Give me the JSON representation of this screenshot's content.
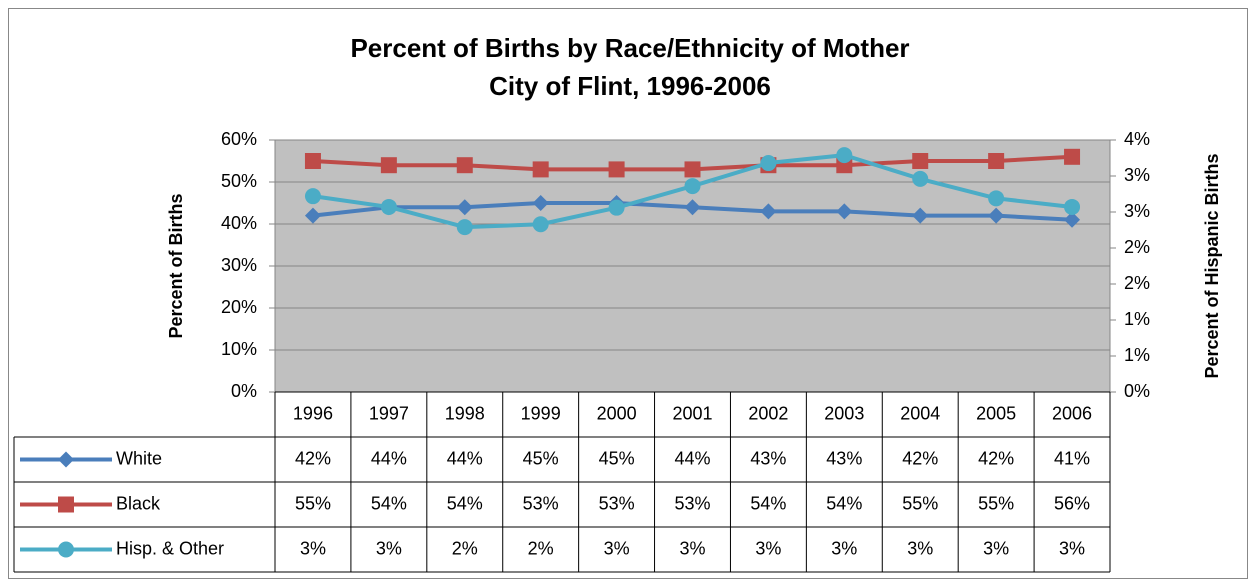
{
  "chart_data": {
    "type": "line",
    "title": "Percent of Births by Race/Ethnicity of Mother",
    "subtitle": "City of Flint, 1996-2006",
    "y_label": "Percent of Births",
    "y2_label": "Percent of Hispanic Births",
    "categories": [
      "1996",
      "1997",
      "1998",
      "1999",
      "2000",
      "2001",
      "2002",
      "2003",
      "2004",
      "2005",
      "2006"
    ],
    "ylim": [
      0,
      60
    ],
    "yticks": [
      {
        "value": 0,
        "label": "0%"
      },
      {
        "value": 10,
        "label": "10%"
      },
      {
        "value": 20,
        "label": "20%"
      },
      {
        "value": 30,
        "label": "30%"
      },
      {
        "value": 40,
        "label": "40%"
      },
      {
        "value": 50,
        "label": "50%"
      },
      {
        "value": 60,
        "label": "60%"
      }
    ],
    "y2lim": [
      0,
      3.5
    ],
    "y2ticks": [
      {
        "value": 0,
        "label": "0%"
      },
      {
        "value": 0.5,
        "label": "1%"
      },
      {
        "value": 1,
        "label": "1%"
      },
      {
        "value": 1.5,
        "label": "2%"
      },
      {
        "value": 2,
        "label": "2%"
      },
      {
        "value": 2.5,
        "label": "3%"
      },
      {
        "value": 3,
        "label": "3%"
      },
      {
        "value": 3.5,
        "label": "4%"
      }
    ],
    "grid": true,
    "series": [
      {
        "name": "White",
        "color": "#4a7ebb",
        "marker": "diamond",
        "values": [
          42,
          44,
          44,
          45,
          45,
          44,
          43,
          43,
          42,
          42,
          41
        ],
        "value_labels": [
          "42%",
          "44%",
          "44%",
          "45%",
          "45%",
          "44%",
          "43%",
          "43%",
          "42%",
          "42%",
          "41%"
        ]
      },
      {
        "name": "Black",
        "color": "#be4b48",
        "marker": "square",
        "values": [
          55,
          54,
          54,
          53,
          53,
          53,
          54,
          54,
          55,
          55,
          56
        ],
        "value_labels": [
          "55%",
          "54%",
          "54%",
          "53%",
          "53%",
          "53%",
          "54%",
          "54%",
          "55%",
          "55%",
          "56%"
        ]
      },
      {
        "name": "Hisp. & Other",
        "color": "#4bacc6",
        "marker": "circle",
        "axis": "y2",
        "values": [
          2.72,
          2.57,
          2.29,
          2.33,
          2.56,
          2.86,
          3.18,
          3.29,
          2.96,
          2.69,
          2.57
        ],
        "value_labels": [
          "3%",
          "3%",
          "2%",
          "2%",
          "3%",
          "3%",
          "3%",
          "3%",
          "3%",
          "3%",
          "3%"
        ]
      }
    ]
  }
}
